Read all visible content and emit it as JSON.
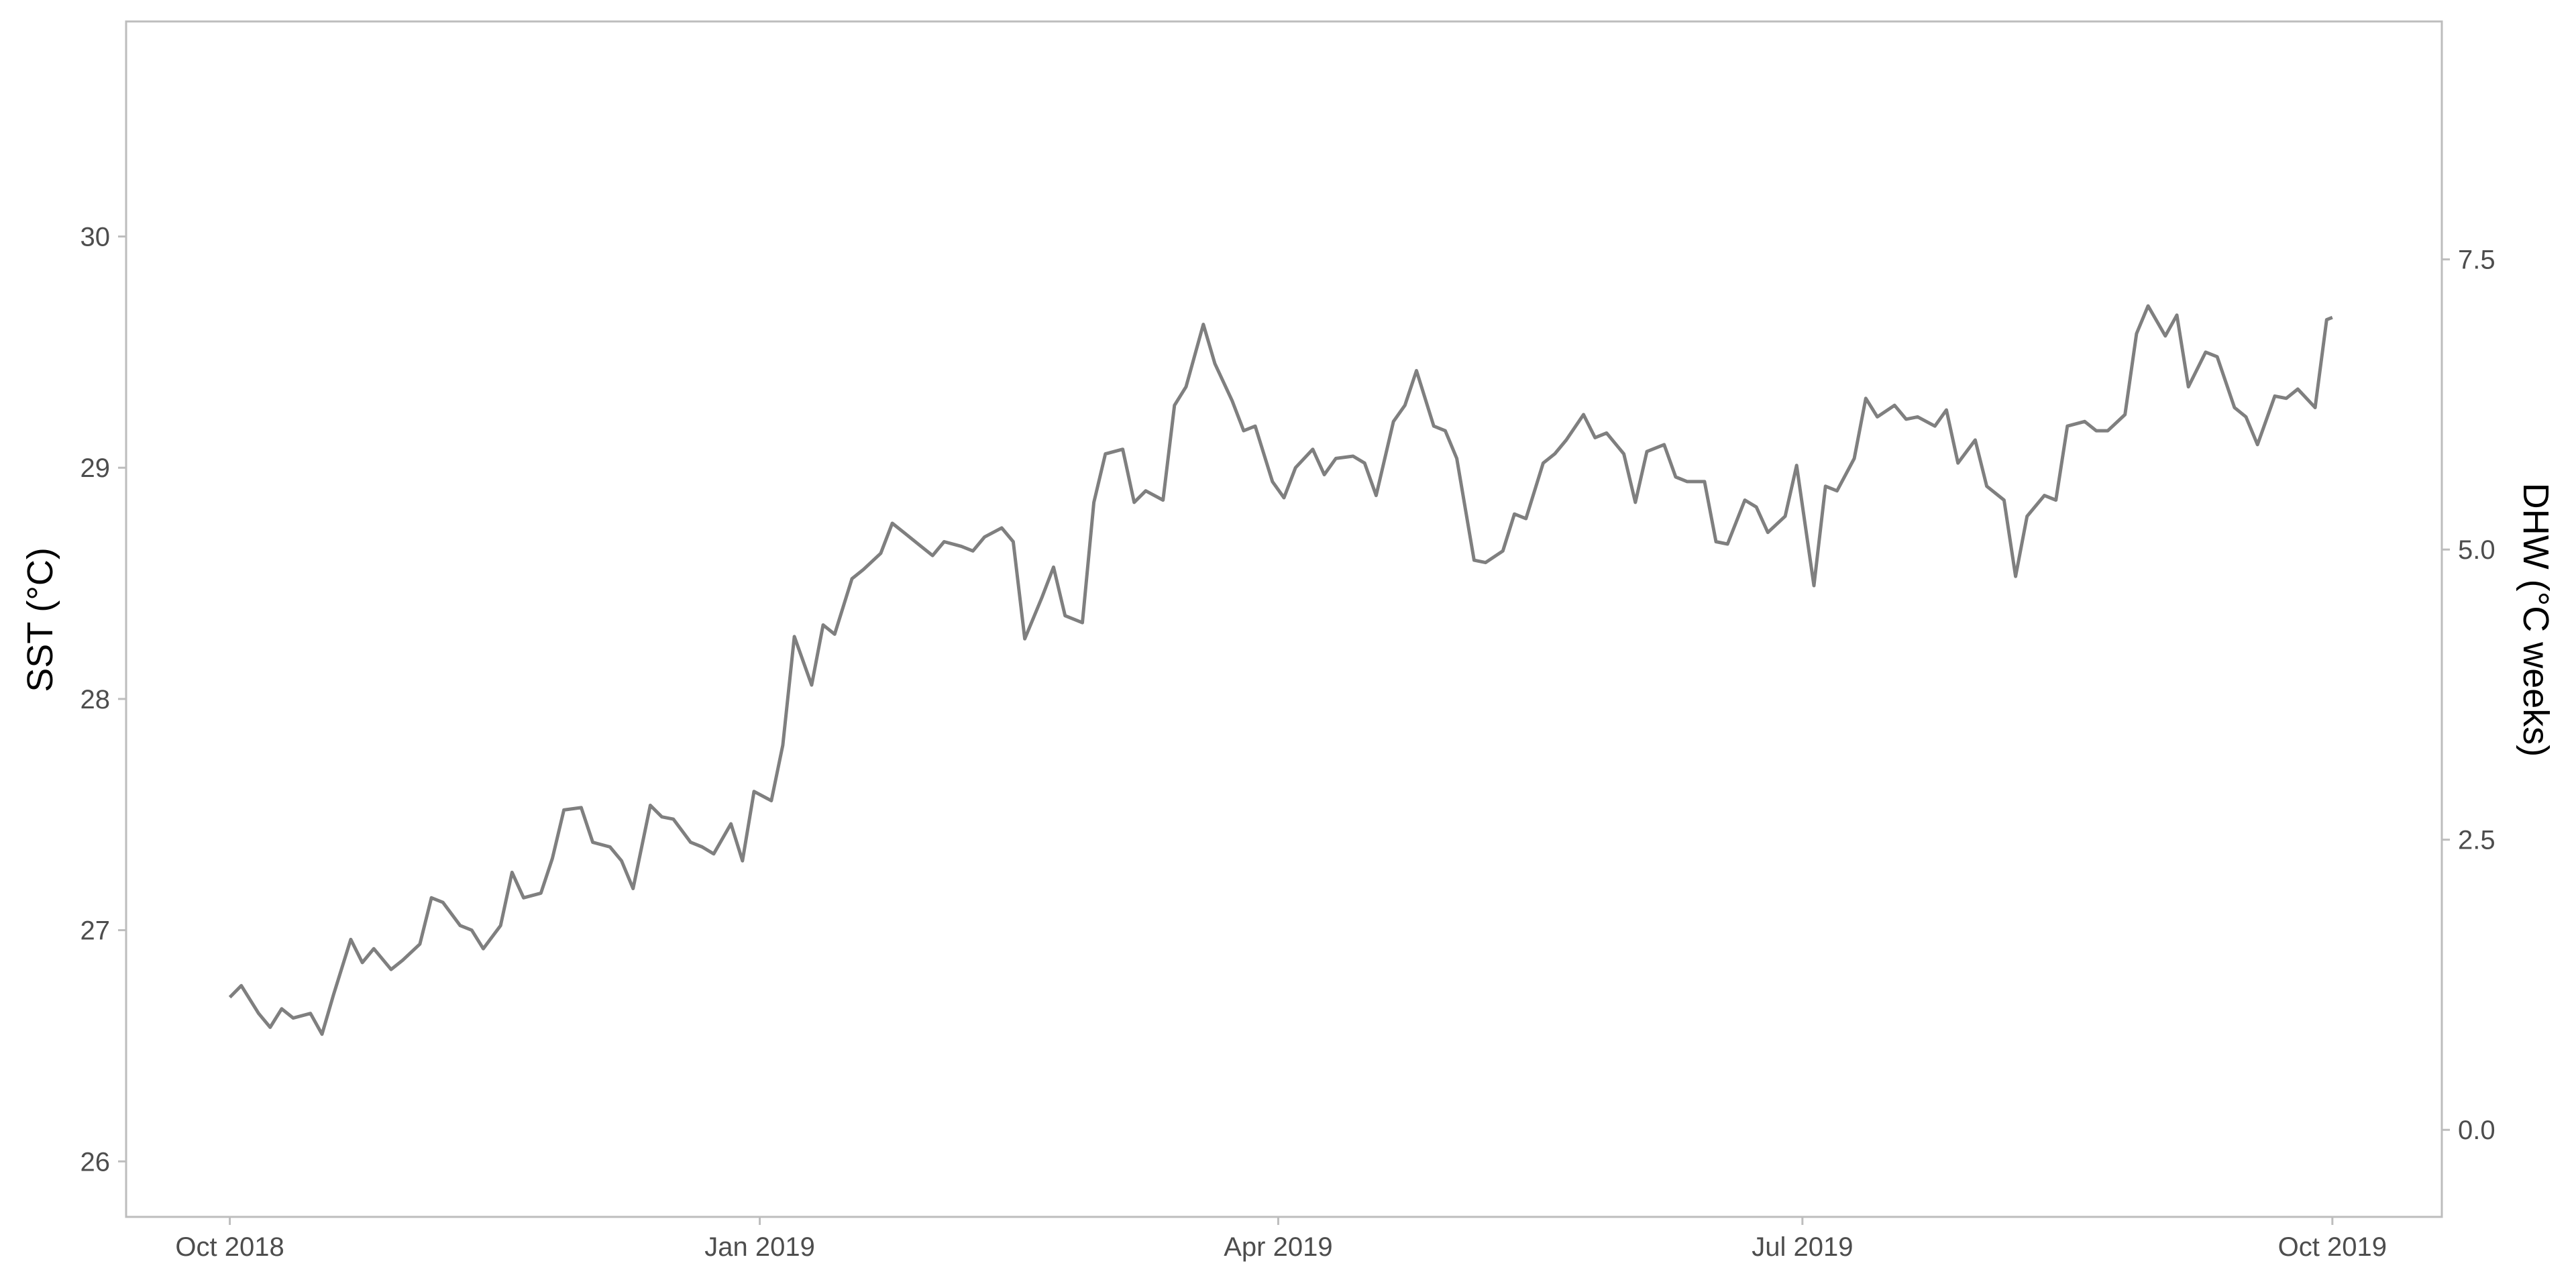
{
  "chart_data": {
    "type": "line",
    "title": "",
    "xlabel": "",
    "ylabel_left": "SST (°C)",
    "ylabel_right": "DHW (°C weeks)",
    "x_start": "2018-10-01",
    "x_end": "2019-10-01",
    "xlim": [
      "2018-09-13",
      "2019-10-20"
    ],
    "ylim_left": [
      25.76,
      30.93
    ],
    "ylim_right": [
      -0.75,
      9.55
    ],
    "x_ticks": [
      {
        "date": "2018-10-01",
        "label": "Oct 2018"
      },
      {
        "date": "2019-01-01",
        "label": "Jan 2019"
      },
      {
        "date": "2019-04-01",
        "label": "Apr 2019"
      },
      {
        "date": "2019-07-01",
        "label": "Jul 2019"
      },
      {
        "date": "2019-10-01",
        "label": "Oct 2019"
      }
    ],
    "y_ticks_left": [
      {
        "value": 26,
        "label": "26"
      },
      {
        "value": 27,
        "label": "27"
      },
      {
        "value": 28,
        "label": "28"
      },
      {
        "value": 29,
        "label": "29"
      },
      {
        "value": 30,
        "label": "30"
      }
    ],
    "y_ticks_right": [
      {
        "value": 0,
        "label": "0.0"
      },
      {
        "value": 2.5,
        "label": "2.5"
      },
      {
        "value": 5,
        "label": "5.0"
      },
      {
        "value": 7.5,
        "label": "7.5"
      }
    ],
    "grid": false,
    "series": [
      {
        "name": "SST",
        "axis": "left",
        "color": "#7f7f7f",
        "points": [
          [
            "2018-10-01",
            26.71
          ],
          [
            "2018-10-03",
            26.76
          ],
          [
            "2018-10-06",
            26.64
          ],
          [
            "2018-10-08",
            26.58
          ],
          [
            "2018-10-10",
            26.66
          ],
          [
            "2018-10-12",
            26.62
          ],
          [
            "2018-10-15",
            26.64
          ],
          [
            "2018-10-17",
            26.55
          ],
          [
            "2018-10-19",
            26.72
          ],
          [
            "2018-10-22",
            26.96
          ],
          [
            "2018-10-24",
            26.86
          ],
          [
            "2018-10-26",
            26.92
          ],
          [
            "2018-10-29",
            26.83
          ],
          [
            "2018-10-31",
            26.87
          ],
          [
            "2018-11-03",
            26.94
          ],
          [
            "2018-11-05",
            27.14
          ],
          [
            "2018-11-07",
            27.12
          ],
          [
            "2018-11-10",
            27.02
          ],
          [
            "2018-11-12",
            27.0
          ],
          [
            "2018-11-14",
            26.92
          ],
          [
            "2018-11-17",
            27.02
          ],
          [
            "2018-11-19",
            27.25
          ],
          [
            "2018-11-21",
            27.14
          ],
          [
            "2018-11-24",
            27.16
          ],
          [
            "2018-11-26",
            27.31
          ],
          [
            "2018-11-28",
            27.52
          ],
          [
            "2018-12-01",
            27.53
          ],
          [
            "2018-12-03",
            27.38
          ],
          [
            "2018-12-06",
            27.36
          ],
          [
            "2018-12-08",
            27.3
          ],
          [
            "2018-12-10",
            27.18
          ],
          [
            "2018-12-13",
            27.54
          ],
          [
            "2018-12-15",
            27.49
          ],
          [
            "2018-12-17",
            27.48
          ],
          [
            "2018-12-20",
            27.38
          ],
          [
            "2018-12-22",
            27.36
          ],
          [
            "2018-12-24",
            27.33
          ],
          [
            "2018-12-27",
            27.46
          ],
          [
            "2018-12-29",
            27.3
          ],
          [
            "2018-12-31",
            27.6
          ],
          [
            "2019-01-03",
            27.56
          ],
          [
            "2019-01-05",
            27.8
          ],
          [
            "2019-01-07",
            28.27
          ],
          [
            "2019-01-10",
            28.06
          ],
          [
            "2019-01-12",
            28.32
          ],
          [
            "2019-01-14",
            28.28
          ],
          [
            "2019-01-17",
            28.52
          ],
          [
            "2019-01-19",
            28.56
          ],
          [
            "2019-01-22",
            28.63
          ],
          [
            "2019-01-24",
            28.76
          ],
          [
            "2019-01-26",
            28.72
          ],
          [
            "2019-01-29",
            28.66
          ],
          [
            "2019-01-31",
            28.62
          ],
          [
            "2019-02-02",
            28.68
          ],
          [
            "2019-02-05",
            28.66
          ],
          [
            "2019-02-07",
            28.64
          ],
          [
            "2019-02-09",
            28.7
          ],
          [
            "2019-02-12",
            28.74
          ],
          [
            "2019-02-14",
            28.68
          ],
          [
            "2019-02-16",
            28.26
          ],
          [
            "2019-02-19",
            28.44
          ],
          [
            "2019-02-21",
            28.57
          ],
          [
            "2019-02-23",
            28.36
          ],
          [
            "2019-02-26",
            28.33
          ],
          [
            "2019-02-28",
            28.85
          ],
          [
            "2019-03-02",
            29.06
          ],
          [
            "2019-03-05",
            29.08
          ],
          [
            "2019-03-07",
            28.85
          ],
          [
            "2019-03-09",
            28.9
          ],
          [
            "2019-03-12",
            28.86
          ],
          [
            "2019-03-14",
            29.27
          ],
          [
            "2019-03-16",
            29.35
          ],
          [
            "2019-03-19",
            29.62
          ],
          [
            "2019-03-21",
            29.45
          ],
          [
            "2019-03-24",
            29.29
          ],
          [
            "2019-03-26",
            29.16
          ],
          [
            "2019-03-28",
            29.18
          ],
          [
            "2019-03-31",
            28.94
          ],
          [
            "2019-04-02",
            28.87
          ],
          [
            "2019-04-04",
            29.0
          ],
          [
            "2019-04-07",
            29.08
          ],
          [
            "2019-04-09",
            28.97
          ],
          [
            "2019-04-11",
            29.04
          ],
          [
            "2019-04-14",
            29.05
          ],
          [
            "2019-04-16",
            29.02
          ],
          [
            "2019-04-18",
            28.88
          ],
          [
            "2019-04-21",
            29.2
          ],
          [
            "2019-04-23",
            29.27
          ],
          [
            "2019-04-25",
            29.42
          ],
          [
            "2019-04-28",
            29.18
          ],
          [
            "2019-04-30",
            29.16
          ],
          [
            "2019-05-02",
            29.04
          ],
          [
            "2019-05-05",
            28.6
          ],
          [
            "2019-05-07",
            28.59
          ],
          [
            "2019-05-10",
            28.64
          ],
          [
            "2019-05-12",
            28.8
          ],
          [
            "2019-05-14",
            28.78
          ],
          [
            "2019-05-17",
            29.02
          ],
          [
            "2019-05-19",
            29.06
          ],
          [
            "2019-05-21",
            29.12
          ],
          [
            "2019-05-24",
            29.23
          ],
          [
            "2019-05-26",
            29.13
          ],
          [
            "2019-05-28",
            29.15
          ],
          [
            "2019-05-31",
            29.06
          ],
          [
            "2019-06-02",
            28.85
          ],
          [
            "2019-06-04",
            29.07
          ],
          [
            "2019-06-07",
            29.1
          ],
          [
            "2019-06-09",
            28.96
          ],
          [
            "2019-06-11",
            28.94
          ],
          [
            "2019-06-14",
            28.94
          ],
          [
            "2019-06-16",
            28.68
          ],
          [
            "2019-06-18",
            28.67
          ],
          [
            "2019-06-21",
            28.86
          ],
          [
            "2019-06-23",
            28.83
          ],
          [
            "2019-06-25",
            28.72
          ],
          [
            "2019-06-28",
            28.79
          ],
          [
            "2019-06-30",
            29.01
          ],
          [
            "2019-07-03",
            28.49
          ],
          [
            "2019-07-05",
            28.92
          ],
          [
            "2019-07-07",
            28.9
          ],
          [
            "2019-07-10",
            29.04
          ],
          [
            "2019-07-12",
            29.3
          ],
          [
            "2019-07-14",
            29.22
          ],
          [
            "2019-07-17",
            29.27
          ],
          [
            "2019-07-19",
            29.21
          ],
          [
            "2019-07-21",
            29.22
          ],
          [
            "2019-07-24",
            29.18
          ],
          [
            "2019-07-26",
            29.25
          ],
          [
            "2019-07-28",
            29.02
          ],
          [
            "2019-07-31",
            29.12
          ],
          [
            "2019-08-02",
            28.92
          ],
          [
            "2019-08-05",
            28.86
          ],
          [
            "2019-08-07",
            28.53
          ],
          [
            "2019-08-09",
            28.79
          ],
          [
            "2019-08-12",
            28.88
          ],
          [
            "2019-08-14",
            28.86
          ],
          [
            "2019-08-16",
            29.18
          ],
          [
            "2019-08-19",
            29.2
          ],
          [
            "2019-08-21",
            29.16
          ],
          [
            "2019-08-23",
            29.16
          ],
          [
            "2019-08-26",
            29.23
          ],
          [
            "2019-08-28",
            29.58
          ],
          [
            "2019-08-30",
            29.7
          ],
          [
            "2019-09-02",
            29.57
          ],
          [
            "2019-09-04",
            29.66
          ],
          [
            "2019-09-06",
            29.35
          ],
          [
            "2019-09-09",
            29.5
          ],
          [
            "2019-09-11",
            29.48
          ],
          [
            "2019-09-14",
            29.26
          ],
          [
            "2019-09-16",
            29.22
          ],
          [
            "2019-09-18",
            29.1
          ],
          [
            "2019-09-21",
            29.31
          ],
          [
            "2019-09-23",
            29.3
          ],
          [
            "2019-09-25",
            29.34
          ],
          [
            "2019-09-28",
            29.26
          ],
          [
            "2019-09-30",
            29.64
          ],
          [
            "2019-10-01",
            29.65
          ]
        ]
      }
    ]
  }
}
